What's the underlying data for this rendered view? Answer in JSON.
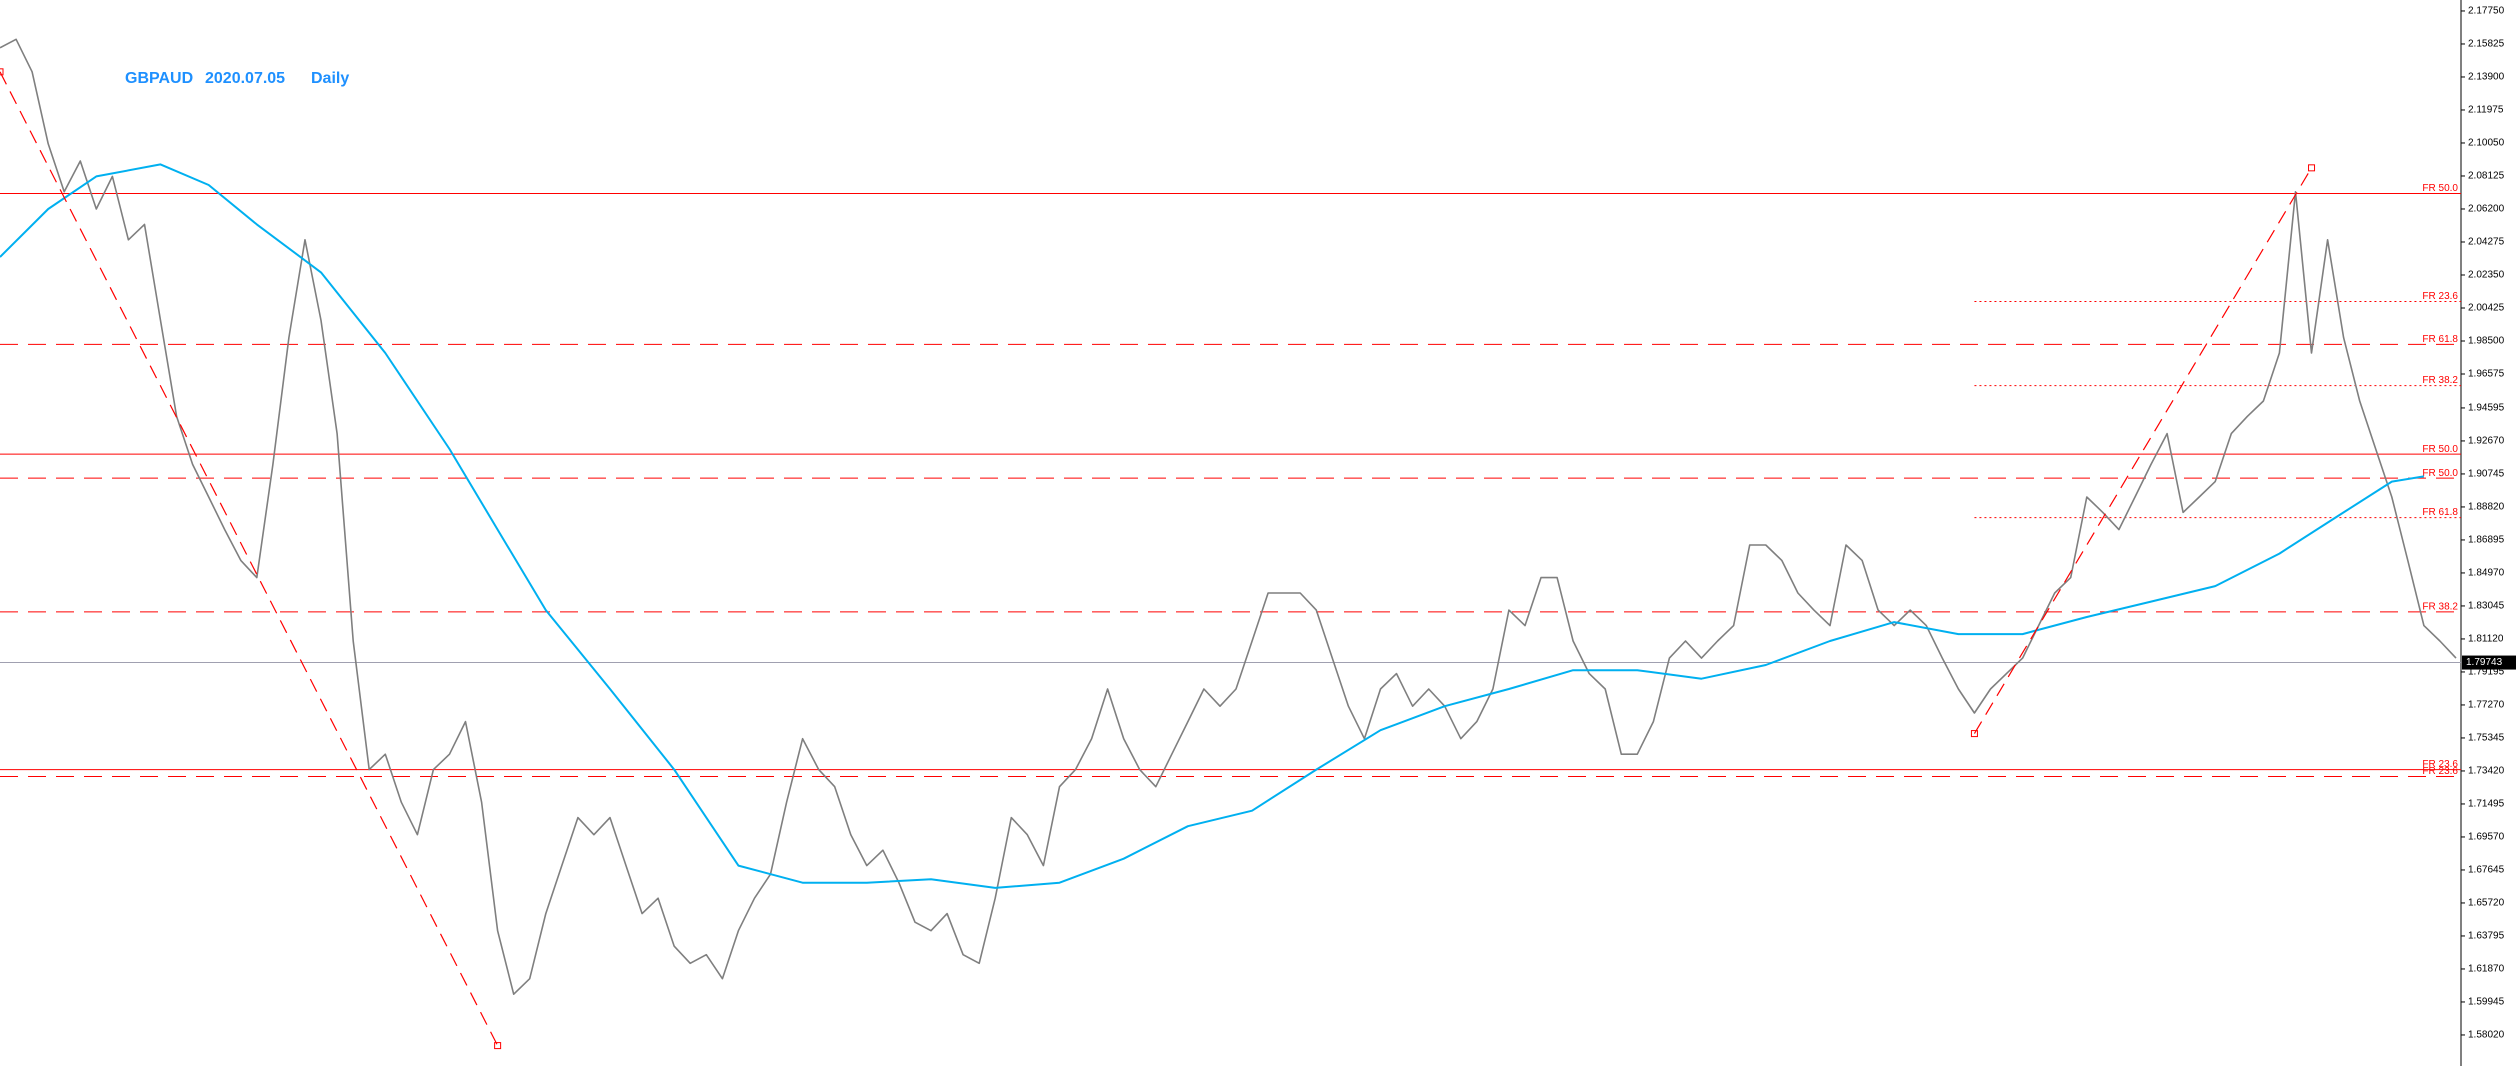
{
  "chart_data": {
    "type": "line",
    "symbol": "GBPAUD",
    "date": "2020.07.05",
    "timeframe": "Daily",
    "xlim": [
      0,
      153
    ],
    "ylim": [
      1.5621,
      2.1839
    ],
    "yticks": [
      {
        "value": 2.1775,
        "label": "2.17750"
      },
      2.15825,
      {
        "value": 2.139,
        "label": "2.13900"
      },
      2.11975,
      {
        "value": 2.1005,
        "label": "2.10050"
      },
      2.08125,
      {
        "value": 2.062,
        "label": "2.06200"
      },
      2.04275,
      {
        "value": 2.0235,
        "label": "2.02350"
      },
      2.00425,
      {
        "value": 1.985,
        "label": "1.98500"
      },
      1.96575,
      1.94595,
      {
        "value": 1.9267,
        "label": "1.92670"
      },
      1.90745,
      {
        "value": 1.8882,
        "label": "1.88820"
      },
      1.86895,
      {
        "value": 1.8497,
        "label": "1.84970"
      },
      1.83045,
      {
        "value": 1.8112,
        "label": "1.81120"
      },
      1.79195,
      {
        "value": 1.7727,
        "label": "1.77270"
      },
      1.75345,
      {
        "value": 1.7342,
        "label": "1.73420"
      },
      1.71495,
      {
        "value": 1.6957,
        "label": "1.69570"
      },
      1.67645,
      {
        "value": 1.6572,
        "label": "1.65720"
      },
      1.63795,
      {
        "value": 1.6187,
        "label": "1.61870"
      },
      1.59945,
      {
        "value": 1.5802,
        "label": "1.58020"
      }
    ],
    "series": [
      {
        "color": "#7f7f7f",
        "values": [
          2.156,
          2.161,
          2.142,
          2.1,
          2.072,
          2.09,
          2.062,
          2.081,
          2.044,
          2.053,
          1.997,
          1.941,
          1.913,
          1.894,
          1.875,
          1.857,
          1.847,
          1.913,
          1.987,
          2.044,
          1.997,
          1.931,
          1.81,
          1.735,
          1.744,
          1.716,
          1.697,
          1.735,
          1.744,
          1.763,
          1.716,
          1.641,
          1.604,
          1.613,
          1.651,
          1.679,
          1.707,
          1.697,
          1.707,
          1.679,
          1.651,
          1.66,
          1.632,
          1.622,
          1.627,
          1.613,
          1.641,
          1.66,
          1.674,
          1.716,
          1.753,
          1.735,
          1.725,
          1.697,
          1.679,
          1.688,
          1.669,
          1.646,
          1.641,
          1.651,
          1.627,
          1.622,
          1.66,
          1.707,
          1.697,
          1.679,
          1.725,
          1.735,
          1.753,
          1.782,
          1.753,
          1.735,
          1.725,
          1.744,
          1.763,
          1.782,
          1.772,
          1.782,
          1.81,
          1.838,
          1.838,
          1.838,
          1.828,
          1.8,
          1.772,
          1.753,
          1.782,
          1.791,
          1.772,
          1.782,
          1.772,
          1.753,
          1.763,
          1.782,
          1.828,
          1.819,
          1.847,
          1.847,
          1.81,
          1.791,
          1.782,
          1.744,
          1.744,
          1.763,
          1.8,
          1.81,
          1.8,
          1.81,
          1.819,
          1.866,
          1.866,
          1.857,
          1.838,
          1.828,
          1.819,
          1.866,
          1.857,
          1.828,
          1.819,
          1.828,
          1.819,
          1.8,
          1.782,
          1.768,
          1.782,
          1.791,
          1.8,
          1.819,
          1.838,
          1.847,
          1.894,
          1.885,
          1.875,
          1.894,
          1.913,
          1.931,
          1.885,
          1.894,
          1.903,
          1.931,
          1.941,
          1.95,
          1.978,
          2.072,
          1.978,
          2.044,
          1.987,
          1.95,
          1.922,
          1.894,
          1.857,
          1.819,
          1.81,
          1.8
        ]
      },
      {
        "color": "#00b0f0",
        "x": [
          0,
          3,
          6,
          10,
          13,
          16,
          20,
          24,
          28,
          31,
          34,
          38,
          42,
          46,
          50,
          54,
          58,
          62,
          66,
          70,
          74,
          78,
          82,
          86,
          90,
          94,
          98,
          102,
          106,
          110,
          114,
          118,
          122,
          126,
          130,
          134,
          138,
          142,
          146,
          149,
          151
        ],
        "values": [
          2.034,
          2.062,
          2.081,
          2.088,
          2.076,
          2.053,
          2.025,
          1.978,
          1.922,
          1.875,
          1.828,
          1.782,
          1.735,
          1.679,
          1.669,
          1.669,
          1.671,
          1.666,
          1.669,
          1.683,
          1.702,
          1.711,
          1.735,
          1.758,
          1.772,
          1.782,
          1.793,
          1.793,
          1.788,
          1.796,
          1.81,
          1.821,
          1.814,
          1.814,
          1.824,
          1.833,
          1.842,
          1.861,
          1.885,
          1.903,
          1.906
        ]
      }
    ],
    "levels": [
      {
        "label": "FR 50.0",
        "value": 2.071,
        "style": "solid",
        "start": 0
      },
      {
        "label": "FR 23.6",
        "value": 2.008,
        "style": "dotted",
        "start": 123
      },
      {
        "label": "FR 61.8",
        "value": 1.983,
        "style": "dashed",
        "start": 0
      },
      {
        "label": "FR 38.2",
        "value": 1.959,
        "style": "dotted",
        "start": 123
      },
      {
        "label": "FR 50.0",
        "value": 1.919,
        "style": "solid",
        "start": 0
      },
      {
        "label": "FR 50.0",
        "value": 1.905,
        "style": "dashed",
        "start": 0
      },
      {
        "label": "FR 61.8",
        "value": 1.882,
        "style": "dotted",
        "start": 123
      },
      {
        "label": "FR 38.2",
        "value": 1.827,
        "style": "dashed",
        "start": 0
      },
      {
        "label": "FR 23.6",
        "value": 1.735,
        "style": "solid",
        "start": 0
      },
      {
        "label": "FR 23.6",
        "value": 1.731,
        "style": "dashed",
        "start": 0
      }
    ],
    "level_color": "#ff0000",
    "trendlines": [
      {
        "x": [
          0,
          31
        ],
        "values": [
          2.142,
          1.574
        ]
      },
      {
        "x": [
          123,
          144
        ],
        "values": [
          1.756,
          2.086
        ]
      }
    ],
    "current_price": {
      "value": 1.79743,
      "color": "#a0a0b0"
    }
  }
}
